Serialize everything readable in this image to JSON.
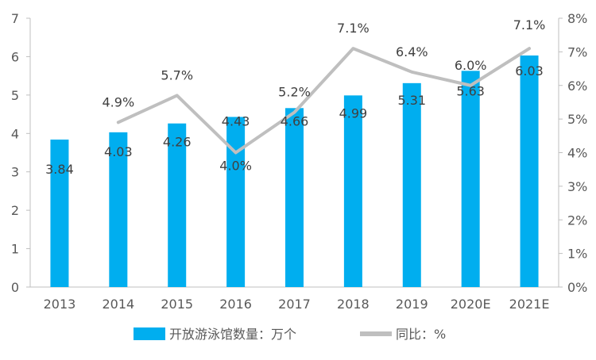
{
  "chart_data": {
    "type": "bar",
    "categories": [
      "2013",
      "2014",
      "2015",
      "2016",
      "2017",
      "2018",
      "2019",
      "2020E",
      "2021E"
    ],
    "series": [
      {
        "name": "开放游泳馆数量：万个",
        "type": "bar",
        "axis": "left",
        "values": [
          3.84,
          4.03,
          4.26,
          4.43,
          4.66,
          4.99,
          5.31,
          5.63,
          6.03
        ],
        "labels": [
          "3.84",
          "4.03",
          "4.26",
          "4.43",
          "4.66",
          "4.99",
          "5.31",
          "5.63",
          "6.03"
        ],
        "color": "#00AEEF"
      },
      {
        "name": "同比：%",
        "type": "line",
        "axis": "right",
        "values": [
          null,
          4.9,
          5.7,
          4.0,
          5.2,
          7.1,
          6.4,
          6.0,
          7.1
        ],
        "labels": [
          null,
          "4.9%",
          "5.7%",
          "4.0%",
          "5.2%",
          "7.1%",
          "6.4%",
          "6.0%",
          "7.1%"
        ],
        "color": "#BFBFBF"
      }
    ],
    "y_left": {
      "ylim": [
        0,
        7
      ],
      "ticks": [
        "0",
        "1",
        "2",
        "3",
        "4",
        "5",
        "6",
        "7"
      ]
    },
    "y_right": {
      "ylim": [
        0,
        8
      ],
      "ticks": [
        "0%",
        "1%",
        "2%",
        "3%",
        "4%",
        "5%",
        "6%",
        "7%",
        "8%"
      ]
    },
    "legend": {
      "position": "bottom",
      "items": [
        "开放游泳馆数量：万个",
        "同比：%"
      ]
    },
    "title": "",
    "xlabel": "",
    "ylabel": "",
    "grid": false
  }
}
